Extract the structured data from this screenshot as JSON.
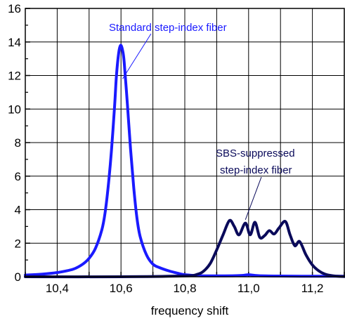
{
  "chart_data": {
    "type": "line",
    "title": "",
    "xlabel": "frequency shift",
    "ylabel": "",
    "xlim": [
      10.3,
      11.3
    ],
    "ylim": [
      0,
      16
    ],
    "grid": true,
    "x_ticks": [
      10.3,
      10.4,
      10.5,
      10.6,
      10.7,
      10.8,
      10.9,
      11.0,
      11.1,
      11.2,
      11.3
    ],
    "x_tick_labels": [
      {
        "x": 10.4,
        "label": "10,4"
      },
      {
        "x": 10.6,
        "label": "10,6"
      },
      {
        "x": 10.8,
        "label": "10,8"
      },
      {
        "x": 11.0,
        "label": "11,0"
      },
      {
        "x": 11.2,
        "label": "11,2"
      }
    ],
    "y_ticks": [
      0,
      2,
      4,
      6,
      8,
      10,
      12,
      14,
      16
    ],
    "y_tick_labels": [
      "0",
      "2",
      "4",
      "6",
      "8",
      "10",
      "12",
      "14",
      "16"
    ],
    "colors": {
      "standard": "#1a1aff",
      "suppressed": "#0a0a5a",
      "grid": "#000000"
    },
    "series": [
      {
        "x": [
          10.3,
          10.35,
          10.4,
          10.45,
          10.48,
          10.5,
          10.52,
          10.54,
          10.55,
          10.56,
          10.57,
          10.58,
          10.585,
          10.59,
          10.595,
          10.6,
          10.605,
          10.61,
          10.62,
          10.63,
          10.64,
          10.65,
          10.66,
          10.68,
          10.7,
          10.72,
          10.75,
          10.78,
          10.8,
          10.85,
          10.9,
          10.95,
          10.98,
          11.0,
          11.02,
          11.05,
          11.1,
          11.2,
          11.3
        ],
        "y": [
          0.1,
          0.15,
          0.25,
          0.45,
          0.75,
          1.1,
          1.7,
          2.8,
          3.8,
          5.4,
          7.5,
          10.2,
          11.8,
          12.9,
          13.6,
          13.8,
          13.5,
          12.8,
          10.3,
          7.6,
          5.3,
          3.5,
          2.4,
          1.3,
          0.75,
          0.55,
          0.35,
          0.2,
          0.12,
          0.06,
          0.05,
          0.06,
          0.08,
          0.12,
          0.08,
          0.05,
          0.04,
          0.03,
          0.03
        ]
      },
      {
        "x": [
          10.3,
          10.6,
          10.8,
          10.84,
          10.86,
          10.88,
          10.9,
          10.92,
          10.94,
          10.955,
          10.97,
          10.99,
          11.005,
          11.02,
          11.035,
          11.05,
          11.065,
          11.08,
          11.095,
          11.115,
          11.13,
          11.145,
          11.16,
          11.18,
          11.2,
          11.22,
          11.24,
          11.26,
          11.28,
          11.3
        ],
        "y": [
          0.0,
          0.0,
          0.05,
          0.15,
          0.35,
          0.8,
          1.6,
          2.5,
          3.35,
          3.0,
          2.5,
          3.2,
          2.5,
          3.25,
          2.35,
          2.45,
          2.75,
          2.55,
          2.9,
          3.3,
          2.5,
          1.85,
          2.1,
          1.3,
          0.7,
          0.35,
          0.15,
          0.07,
          0.03,
          0.01
        ]
      }
    ],
    "annotations": [
      {
        "text": "Standard step-index fiber",
        "target_x": 10.605,
        "target_y": 11.8
      },
      {
        "text": "SBS-suppressed",
        "target_x": 10.99,
        "target_y": 3.4
      },
      {
        "text": "step-index fiber"
      }
    ]
  }
}
